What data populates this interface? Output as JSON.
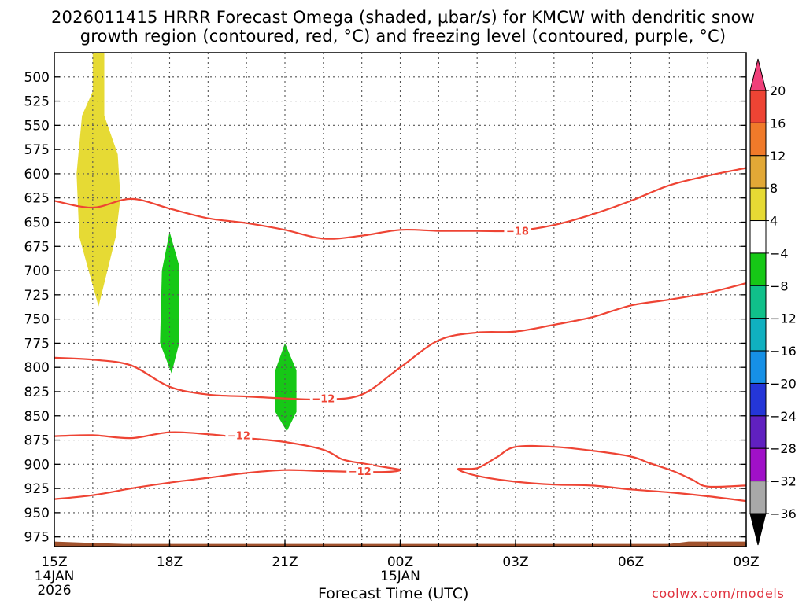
{
  "title": {
    "line1": "2026011415 HRRR Forecast Omega (shaded, µbar/s) for KMCW with dendritic snow",
    "line2": "growth region (contoured, red, °C) and freezing level (contoured, purple, °C)"
  },
  "credit": "coolwx.com/models",
  "chart_data": {
    "type": "contour",
    "xlabel": "Forecast Time (UTC)",
    "x_ticks": [
      {
        "hour": 0,
        "label": "15Z",
        "sub": [
          "14JAN",
          "2026"
        ]
      },
      {
        "hour": 3,
        "label": "18Z",
        "sub": []
      },
      {
        "hour": 6,
        "label": "21Z",
        "sub": []
      },
      {
        "hour": 9,
        "label": "00Z",
        "sub": [
          "15JAN"
        ]
      },
      {
        "hour": 12,
        "label": "03Z",
        "sub": []
      },
      {
        "hour": 15,
        "label": "06Z",
        "sub": []
      },
      {
        "hour": 18,
        "label": "09Z",
        "sub": []
      }
    ],
    "xlim": [
      0,
      18
    ],
    "y_ticks": [
      500,
      525,
      550,
      575,
      600,
      625,
      650,
      675,
      700,
      725,
      750,
      775,
      800,
      825,
      850,
      875,
      900,
      925,
      950,
      975
    ],
    "ylim": [
      475,
      985
    ],
    "grid": true,
    "colorbar": {
      "tick_labels": [
        "20",
        "16",
        "12",
        "8",
        "4",
        "−4",
        "−8",
        "−12",
        "−16",
        "−20",
        "−24",
        "−28",
        "−32",
        "−36"
      ],
      "colors": [
        "#f0407a",
        "#ee4434",
        "#f07a2a",
        "#e2a836",
        "#e6da34",
        "#ffffff",
        "#16c816",
        "#10c08a",
        "#10b0c0",
        "#1690e6",
        "#2436d8",
        "#6020c0",
        "#a010c8",
        "#a8a8a8",
        "#000000"
      ]
    },
    "omega_regions": [
      {
        "color": "#e6da34",
        "level_range": [
          4,
          8
        ],
        "points": [
          [
            1.0,
            475
          ],
          [
            1.3,
            475
          ],
          [
            1.3,
            540
          ],
          [
            1.65,
            580
          ],
          [
            1.72,
            625
          ],
          [
            1.6,
            665
          ],
          [
            1.15,
            737
          ],
          [
            0.65,
            665
          ],
          [
            0.58,
            600
          ],
          [
            0.72,
            540
          ],
          [
            1.0,
            515
          ]
        ]
      },
      {
        "color": "#16c816",
        "level_range": [
          -8,
          -4
        ],
        "points": [
          [
            3.0,
            660
          ],
          [
            3.25,
            695
          ],
          [
            3.25,
            775
          ],
          [
            3.05,
            806
          ],
          [
            2.75,
            775
          ],
          [
            2.8,
            700
          ]
        ]
      },
      {
        "color": "#16c816",
        "level_range": [
          -8,
          -4
        ],
        "points": [
          [
            6.0,
            775
          ],
          [
            6.3,
            803
          ],
          [
            6.3,
            846
          ],
          [
            6.05,
            866
          ],
          [
            5.75,
            846
          ],
          [
            5.75,
            803
          ]
        ]
      }
    ],
    "contours": [
      {
        "level": -18,
        "color": "#ee4434",
        "label": "−18",
        "label_at": [
          12.05,
          659
        ],
        "points": [
          [
            0,
            628
          ],
          [
            1.0,
            635
          ],
          [
            2.0,
            626
          ],
          [
            3.0,
            636
          ],
          [
            4.0,
            646
          ],
          [
            5.0,
            651
          ],
          [
            6.0,
            658
          ],
          [
            7.0,
            667
          ],
          [
            8.0,
            664
          ],
          [
            9.0,
            658
          ],
          [
            10.0,
            659
          ],
          [
            11.0,
            659
          ],
          [
            12.0,
            659
          ],
          [
            13.0,
            653
          ],
          [
            14.0,
            642
          ],
          [
            15.0,
            628
          ],
          [
            16.0,
            612
          ],
          [
            17.0,
            602
          ],
          [
            18.0,
            594
          ]
        ]
      },
      {
        "level": -12,
        "color": "#ee4434",
        "label": "−12",
        "label_at": [
          7.0,
          832
        ],
        "points": [
          [
            0,
            790
          ],
          [
            1.0,
            792
          ],
          [
            2.0,
            798
          ],
          [
            3.0,
            820
          ],
          [
            4.0,
            828
          ],
          [
            5.0,
            830
          ],
          [
            6.0,
            832
          ],
          [
            7.0,
            833
          ],
          [
            8.0,
            828
          ],
          [
            9.0,
            800
          ],
          [
            10.0,
            772
          ],
          [
            11.0,
            764
          ],
          [
            12.0,
            763
          ],
          [
            13.0,
            756
          ],
          [
            14.0,
            748
          ],
          [
            15.0,
            736
          ],
          [
            16.0,
            730
          ],
          [
            17.0,
            723
          ],
          [
            18.0,
            713
          ]
        ]
      },
      {
        "level": -12,
        "color": "#ee4434",
        "label": "−12",
        "label_at": [
          4.8,
          870
        ],
        "points": [
          [
            0,
            871
          ],
          [
            1.0,
            870
          ],
          [
            2.0,
            873
          ],
          [
            3.0,
            867
          ],
          [
            4.0,
            869
          ],
          [
            5.0,
            873
          ],
          [
            6.0,
            877
          ],
          [
            7.0,
            885
          ],
          [
            7.5,
            895
          ],
          [
            8.0,
            899
          ],
          [
            8.6,
            903
          ],
          [
            9.0,
            906
          ],
          [
            8.5,
            908
          ],
          [
            7.0,
            907
          ],
          [
            6.0,
            906
          ],
          [
            5.0,
            909
          ],
          [
            4.0,
            914
          ],
          [
            3.0,
            919
          ],
          [
            2.0,
            925
          ],
          [
            1.0,
            932
          ],
          [
            0,
            936
          ]
        ]
      },
      {
        "level": -12,
        "color": "#ee4434",
        "label": "−12",
        "label_at": [
          7.95,
          907
        ],
        "points": [
          [
            18.0,
            922
          ],
          [
            17.0,
            923
          ],
          [
            16.6,
            916
          ],
          [
            16.1,
            907
          ],
          [
            15.5,
            899
          ],
          [
            15.0,
            892
          ],
          [
            14.0,
            886
          ],
          [
            13.0,
            882
          ],
          [
            12.0,
            882
          ],
          [
            11.5,
            893
          ],
          [
            11.0,
            904
          ],
          [
            10.5,
            905
          ],
          [
            11.0,
            912
          ],
          [
            12.0,
            918
          ],
          [
            13.0,
            921
          ],
          [
            14.0,
            922
          ],
          [
            15.0,
            926
          ],
          [
            16.0,
            929
          ],
          [
            17.0,
            933
          ],
          [
            18.0,
            938
          ]
        ]
      }
    ],
    "terrain": {
      "color": "#a0522d",
      "from_level": 975
    }
  }
}
